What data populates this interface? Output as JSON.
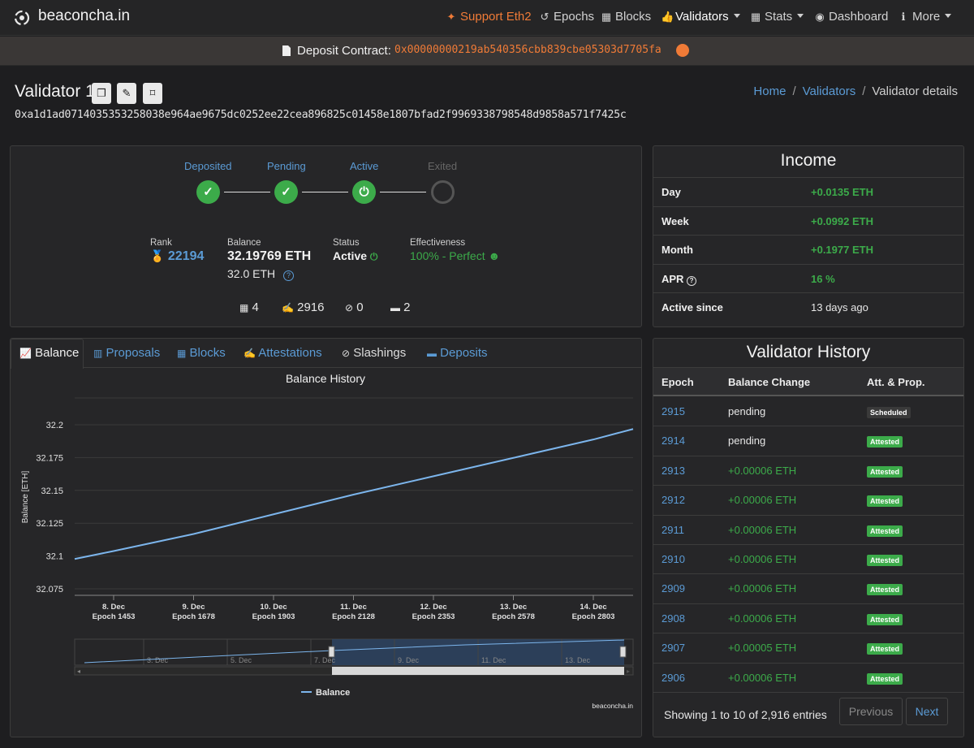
{
  "nav": {
    "brand": "beaconcha.in",
    "support": "Support Eth2",
    "epochs": "Epochs",
    "blocks": "Blocks",
    "validators": "Validators",
    "stats": "Stats",
    "dashboard": "Dashboard",
    "more": "More"
  },
  "deposit": {
    "label": "Deposit Contract:",
    "address": "0x00000000219ab540356cbb839cbe05303d7705fa"
  },
  "header": {
    "title": "Validator 1",
    "pubkey": "0xa1d1ad0714035353258038e964ae9675dc0252ee22cea896825c01458e1807bfad2f9969338798548d9858a571f7425c",
    "breadcrumb": [
      "Home",
      "Validators",
      "Validator details"
    ]
  },
  "status": {
    "steps": [
      "Deposited",
      "Pending",
      "Active",
      "Exited"
    ],
    "rank_label": "Rank",
    "rank": "22194",
    "balance_label": "Balance",
    "balance": "32.19769 ETH",
    "effective_balance": "32.0 ETH",
    "status_label": "Status",
    "status": "Active",
    "effectiveness_label": "Effectiveness",
    "effectiveness": "100% - Perfect",
    "counts": {
      "blocks": "4",
      "attestations": "2916",
      "slashings": "0",
      "deposits": "2"
    }
  },
  "income": {
    "title": "Income",
    "rows": [
      {
        "label": "Day",
        "value": "+0.0135 ETH"
      },
      {
        "label": "Week",
        "value": "+0.0992 ETH"
      },
      {
        "label": "Month",
        "value": "+0.1977 ETH"
      },
      {
        "label": "APR",
        "value": "16 %"
      },
      {
        "label": "Active since",
        "value": "13 days ago"
      }
    ]
  },
  "tabs": [
    "Balance",
    "Proposals",
    "Blocks",
    "Attestations",
    "Slashings",
    "Deposits"
  ],
  "chart_data": {
    "type": "line",
    "title": "Balance History",
    "ylabel": "Balance [ETH]",
    "xlabel": "",
    "ylim": [
      32.075,
      32.2
    ],
    "yticks": [
      "32.075",
      "32.1",
      "32.125",
      "32.15",
      "32.175",
      "32.2"
    ],
    "xticks": [
      {
        "date": "8. Dec",
        "epoch": "Epoch 1453"
      },
      {
        "date": "9. Dec",
        "epoch": "Epoch 1678"
      },
      {
        "date": "10. Dec",
        "epoch": "Epoch 1903"
      },
      {
        "date": "11. Dec",
        "epoch": "Epoch 2128"
      },
      {
        "date": "12. Dec",
        "epoch": "Epoch 2353"
      },
      {
        "date": "13. Dec",
        "epoch": "Epoch 2578"
      },
      {
        "date": "14. Dec",
        "epoch": "Epoch 2803"
      }
    ],
    "series": [
      {
        "name": "Balance",
        "x_epoch": [
          1333,
          1453,
          1678,
          1903,
          2128,
          2353,
          2578,
          2803,
          2915
        ],
        "values": [
          32.099,
          32.105,
          32.118,
          32.133,
          32.148,
          32.162,
          32.176,
          32.19,
          32.198
        ]
      }
    ],
    "navigator_labels": [
      "3. Dec",
      "5. Dec",
      "7. Dec",
      "9. Dec",
      "11. Dec",
      "13. Dec"
    ],
    "legend_position": "bottom",
    "credit": "beaconcha.in",
    "grid": true,
    "line_color": "#7cb5ec"
  },
  "history": {
    "title": "Validator History",
    "columns": [
      "Epoch",
      "Balance Change",
      "Att. & Prop."
    ],
    "rows": [
      {
        "epoch": "2915",
        "change": "pending",
        "badge": "Scheduled"
      },
      {
        "epoch": "2914",
        "change": "pending",
        "badge": "Attested"
      },
      {
        "epoch": "2913",
        "change": "+0.00006 ETH",
        "badge": "Attested"
      },
      {
        "epoch": "2912",
        "change": "+0.00006 ETH",
        "badge": "Attested"
      },
      {
        "epoch": "2911",
        "change": "+0.00006 ETH",
        "badge": "Attested"
      },
      {
        "epoch": "2910",
        "change": "+0.00006 ETH",
        "badge": "Attested"
      },
      {
        "epoch": "2909",
        "change": "+0.00006 ETH",
        "badge": "Attested"
      },
      {
        "epoch": "2908",
        "change": "+0.00006 ETH",
        "badge": "Attested"
      },
      {
        "epoch": "2907",
        "change": "+0.00005 ETH",
        "badge": "Attested"
      },
      {
        "epoch": "2906",
        "change": "+0.00006 ETH",
        "badge": "Attested"
      }
    ],
    "info": "Showing 1 to 10 of 2,916 entries",
    "prev": "Previous",
    "next": "Next"
  },
  "colors": {
    "accent": "#5b9bd5",
    "success": "#3cab4a",
    "orange": "#f07b37"
  }
}
